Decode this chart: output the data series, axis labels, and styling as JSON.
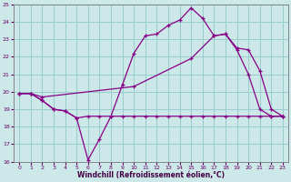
{
  "background_color": "#cce8e8",
  "grid_color": "#99cccc",
  "line_color": "#880088",
  "xlabel": "Windchill (Refroidissement éolien,°C)",
  "xlim": [
    -0.5,
    23.5
  ],
  "ylim": [
    16,
    25
  ],
  "yticks": [
    16,
    17,
    18,
    19,
    20,
    21,
    22,
    23,
    24,
    25
  ],
  "xticks": [
    0,
    1,
    2,
    3,
    4,
    5,
    6,
    7,
    8,
    9,
    10,
    11,
    12,
    13,
    14,
    15,
    16,
    17,
    18,
    19,
    20,
    21,
    22,
    23
  ],
  "curve1_x": [
    0,
    1,
    2,
    3,
    4,
    5,
    6,
    7,
    8,
    9,
    10,
    11,
    12,
    13,
    14,
    15,
    16,
    17,
    18,
    19,
    20,
    21,
    22,
    23
  ],
  "curve1_y": [
    19.9,
    19.9,
    19.5,
    19.0,
    18.9,
    18.5,
    16.1,
    17.3,
    18.6,
    20.4,
    22.2,
    23.2,
    23.3,
    23.8,
    24.1,
    24.8,
    24.2,
    23.2,
    23.3,
    22.4,
    21.0,
    19.0,
    18.6,
    18.6
  ],
  "curve2_x": [
    0,
    1,
    2,
    3,
    4,
    5,
    6,
    7,
    8,
    9,
    10,
    11,
    12,
    13,
    14,
    15,
    16,
    17,
    18,
    19,
    20,
    21,
    22,
    23
  ],
  "curve2_y": [
    19.9,
    19.9,
    19.5,
    19.0,
    18.9,
    18.5,
    18.6,
    18.6,
    18.6,
    18.6,
    18.6,
    18.6,
    18.6,
    18.6,
    18.6,
    18.6,
    18.6,
    18.6,
    18.6,
    18.6,
    18.6,
    18.6,
    18.6,
    18.6
  ],
  "curve3_x": [
    0,
    1,
    2,
    10,
    15,
    17,
    18,
    19,
    20,
    21,
    22,
    23
  ],
  "curve3_y": [
    19.9,
    19.9,
    19.7,
    20.3,
    21.9,
    23.2,
    23.3,
    22.5,
    22.4,
    21.2,
    19.0,
    18.6
  ]
}
